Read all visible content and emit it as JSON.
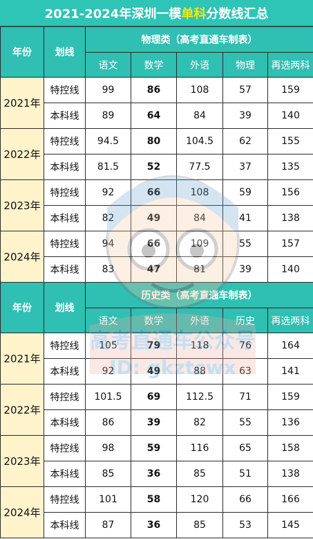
{
  "title": {
    "prefix": "2021-2024年深圳一模",
    "highlight": "单科",
    "suffix": "分数线汇总"
  },
  "watermark": {
    "line1": "高考直通车公众号",
    "line2": "ID: gkztcwx"
  },
  "physics": {
    "header": "物理类（高考直通车制表）",
    "year_label": "年份",
    "line_label": "划线",
    "columns": [
      "语文",
      "数学",
      "外语",
      "物理",
      "再选两科"
    ],
    "rows": [
      {
        "year": "2021年",
        "line": "特控线",
        "values": [
          "99",
          "86",
          "108",
          "57",
          "159"
        ]
      },
      {
        "year": "2021年",
        "line": "本科线",
        "values": [
          "89",
          "64",
          "84",
          "39",
          "140"
        ]
      },
      {
        "year": "2022年",
        "line": "特控线",
        "values": [
          "94.5",
          "80",
          "104.5",
          "62",
          "155"
        ]
      },
      {
        "year": "2022年",
        "line": "本科线",
        "values": [
          "81.5",
          "52",
          "77.5",
          "37",
          "135"
        ]
      },
      {
        "year": "2023年",
        "line": "特控线",
        "values": [
          "92",
          "66",
          "108",
          "59",
          "156"
        ]
      },
      {
        "year": "2023年",
        "line": "本科线",
        "values": [
          "82",
          "49",
          "84",
          "41",
          "138"
        ]
      },
      {
        "year": "2024年",
        "line": "特控线",
        "values": [
          "94",
          "66",
          "109",
          "55",
          "157"
        ]
      },
      {
        "year": "2024年",
        "line": "本科线",
        "values": [
          "83",
          "47",
          "81",
          "39",
          "140"
        ]
      }
    ]
  },
  "history": {
    "header": "历史类（高考直通车制表）",
    "year_label": "年份",
    "line_label": "划线",
    "columns": [
      "语文",
      "数学",
      "外语",
      "历史",
      "再选两科"
    ],
    "rows": [
      {
        "year": "2021年",
        "line": "特控线",
        "values": [
          "105",
          "79",
          "118",
          "76",
          "164"
        ]
      },
      {
        "year": "2021年",
        "line": "本科线",
        "values": [
          "92",
          "49",
          "88",
          "63",
          "141"
        ]
      },
      {
        "year": "2022年",
        "line": "特控线",
        "values": [
          "101.5",
          "69",
          "112.5",
          "71",
          "159"
        ]
      },
      {
        "year": "2022年",
        "line": "本科线",
        "values": [
          "86",
          "39",
          "82",
          "55",
          "136"
        ]
      },
      {
        "year": "2023年",
        "line": "特控线",
        "values": [
          "98",
          "59",
          "116",
          "65",
          "158"
        ]
      },
      {
        "year": "2023年",
        "line": "本科线",
        "values": [
          "85",
          "36",
          "85",
          "51",
          "138"
        ]
      },
      {
        "year": "2024年",
        "line": "特控线",
        "values": [
          "101",
          "58",
          "120",
          "66",
          "166"
        ]
      },
      {
        "year": "2024年",
        "line": "本科线",
        "values": [
          "87",
          "36",
          "85",
          "53",
          "145"
        ]
      }
    ]
  }
}
